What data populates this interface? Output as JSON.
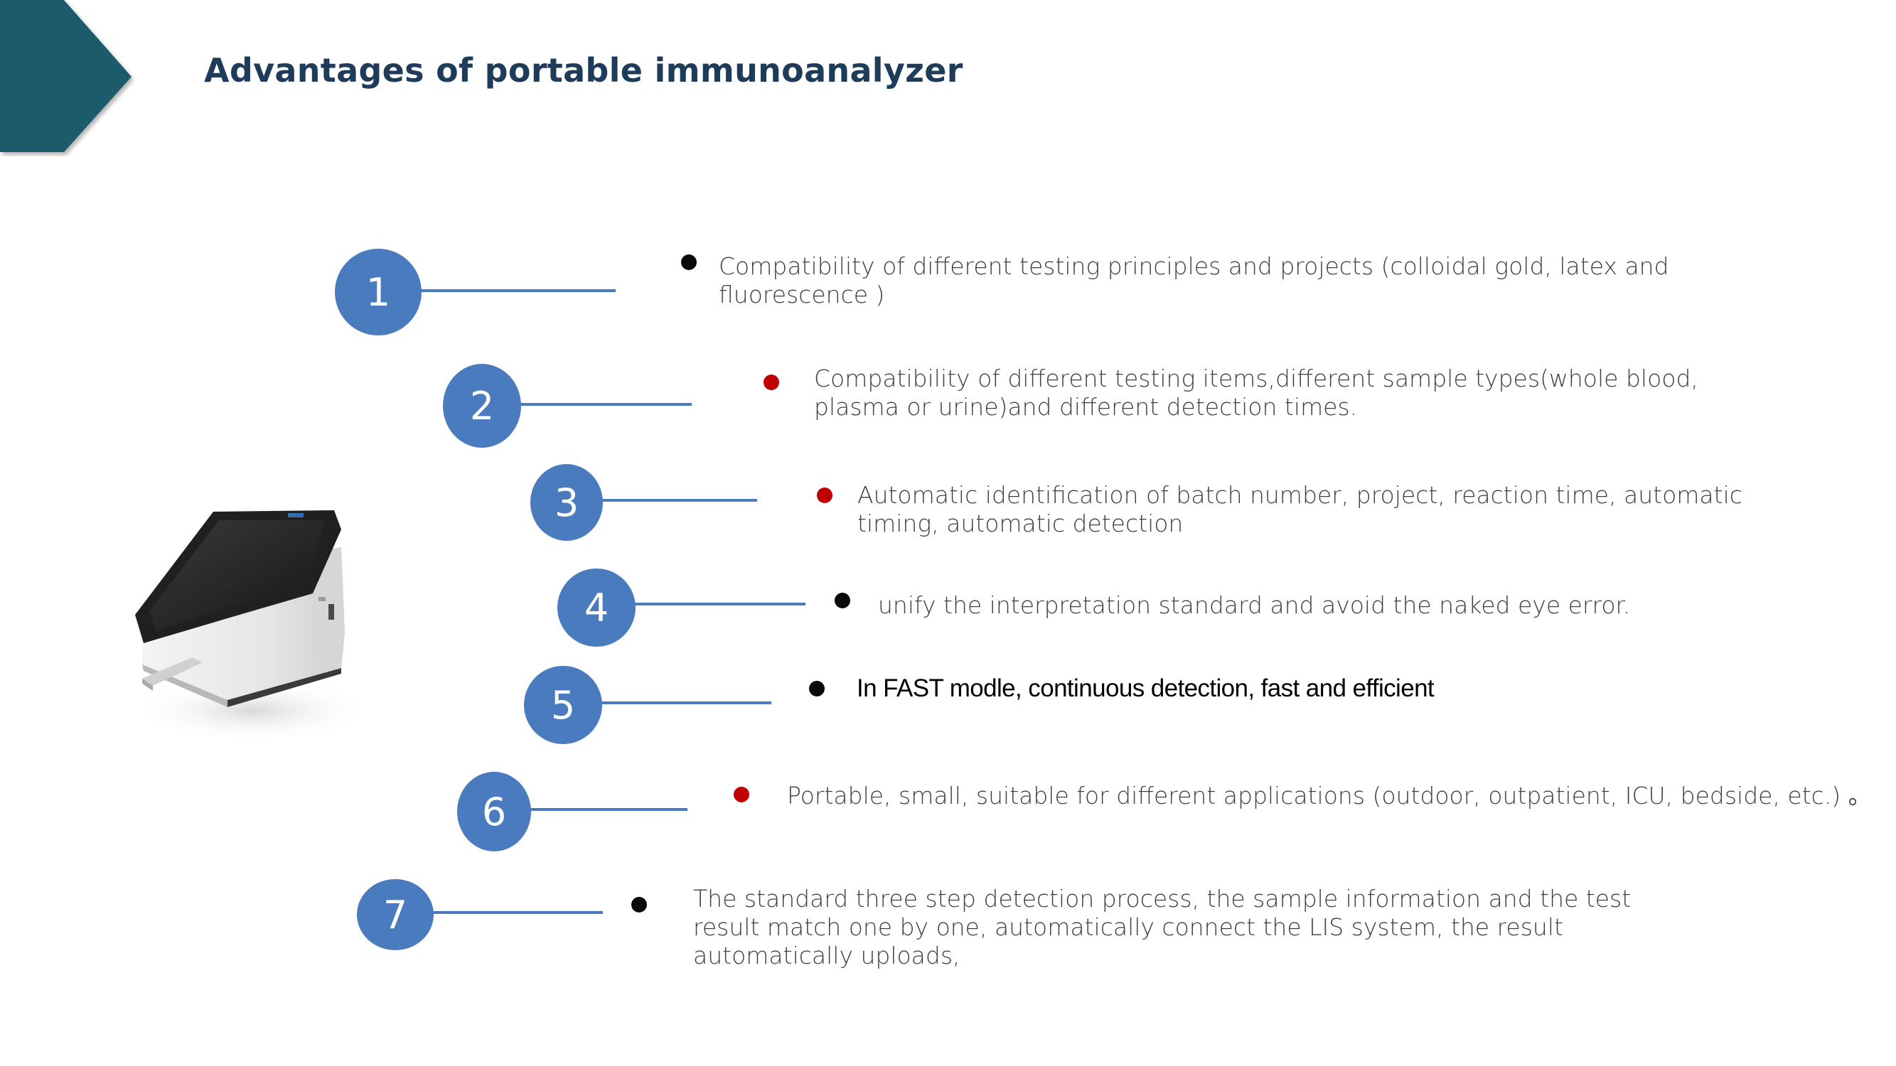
{
  "slide": {
    "title": "Advantages of portable immunoanalyzer",
    "accent_color": "#1f5c6b",
    "circle_color": "#4a7bbf"
  },
  "items": [
    {
      "number": "1",
      "bullet_color": "black",
      "text": "Compatibility of different testing principles and projects (colloidal gold, latex and fluorescence )"
    },
    {
      "number": "2",
      "bullet_color": "red",
      "text": "Compatibility of different testing items,different sample types(whole blood, plasma or urine)and different detection times."
    },
    {
      "number": "3",
      "bullet_color": "red",
      "text": "Automatic identification of batch number, project, reaction time, automatic timing, automatic detection"
    },
    {
      "number": "4",
      "bullet_color": "black",
      "text": "unify the interpretation standard and avoid the naked eye error."
    },
    {
      "number": "5",
      "bullet_color": "black",
      "text": "In FAST modle, continuous detection,  fast and efficient"
    },
    {
      "number": "6",
      "bullet_color": "red",
      "text": "Portable, small, suitable for different applications (outdoor, outpatient, ICU, bedside, etc.) 。"
    },
    {
      "number": "7",
      "bullet_color": "black",
      "text": "The standard three step detection process, the sample information and the test result match one by one, automatically connect the LIS system, the result automatically uploads,"
    }
  ],
  "icons": {
    "corner": "chevron-banner-icon",
    "device": "immunoanalyzer-device-icon"
  }
}
